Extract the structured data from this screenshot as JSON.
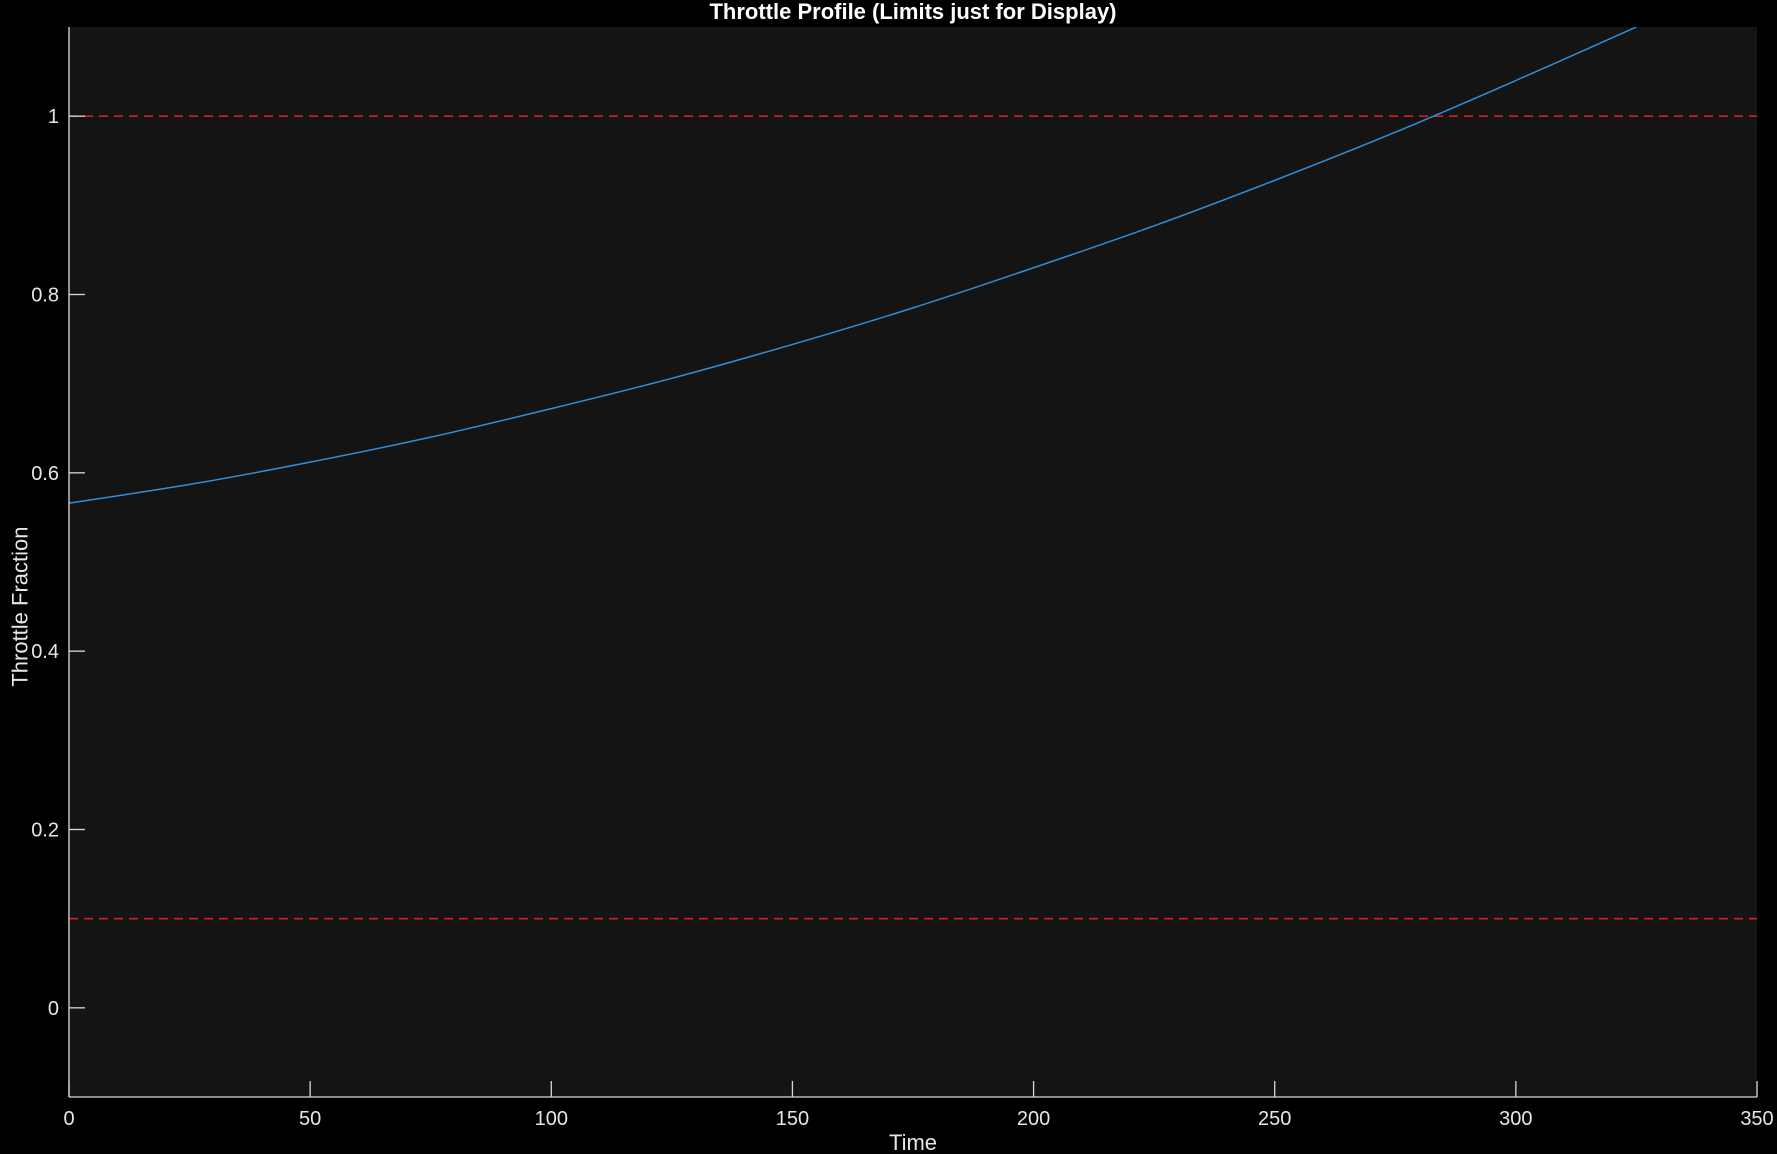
{
  "chart_data": {
    "type": "line",
    "title": "Throttle Profile (Limits just for Display)",
    "xlabel": "Time",
    "ylabel": "Throttle Fraction",
    "xlim": [
      0,
      350
    ],
    "ylim": [
      -0.1,
      1.1
    ],
    "xticks": [
      "0",
      "50",
      "100",
      "150",
      "200",
      "250",
      "300",
      "350"
    ],
    "xtick_values": [
      0,
      50,
      100,
      150,
      200,
      250,
      300,
      350
    ],
    "yticks": [
      "0",
      "0.2",
      "0.4",
      "0.6",
      "0.8",
      "1"
    ],
    "ytick_values": [
      0,
      0.2,
      0.4,
      0.6,
      0.8,
      1
    ],
    "grid": false,
    "series": [
      {
        "color": "#2f8fdb",
        "x": [
          0,
          25,
          50,
          75,
          100,
          125,
          150,
          175,
          200,
          225,
          250,
          275,
          300,
          325
        ],
        "y": [
          0.566,
          0.587,
          0.612,
          0.64,
          0.672,
          0.706,
          0.744,
          0.785,
          0.83,
          0.877,
          0.928,
          0.982,
          1.04,
          1.1
        ]
      }
    ],
    "reference_lines": [
      {
        "y": 1.0,
        "color": "#d81e1e",
        "style": "dashed"
      },
      {
        "y": 0.1,
        "color": "#d81e1e",
        "style": "dashed"
      }
    ],
    "colors": {
      "figure_background": "#000000",
      "axes_background": "#141414",
      "axis_color": "#d9d9d9"
    }
  }
}
